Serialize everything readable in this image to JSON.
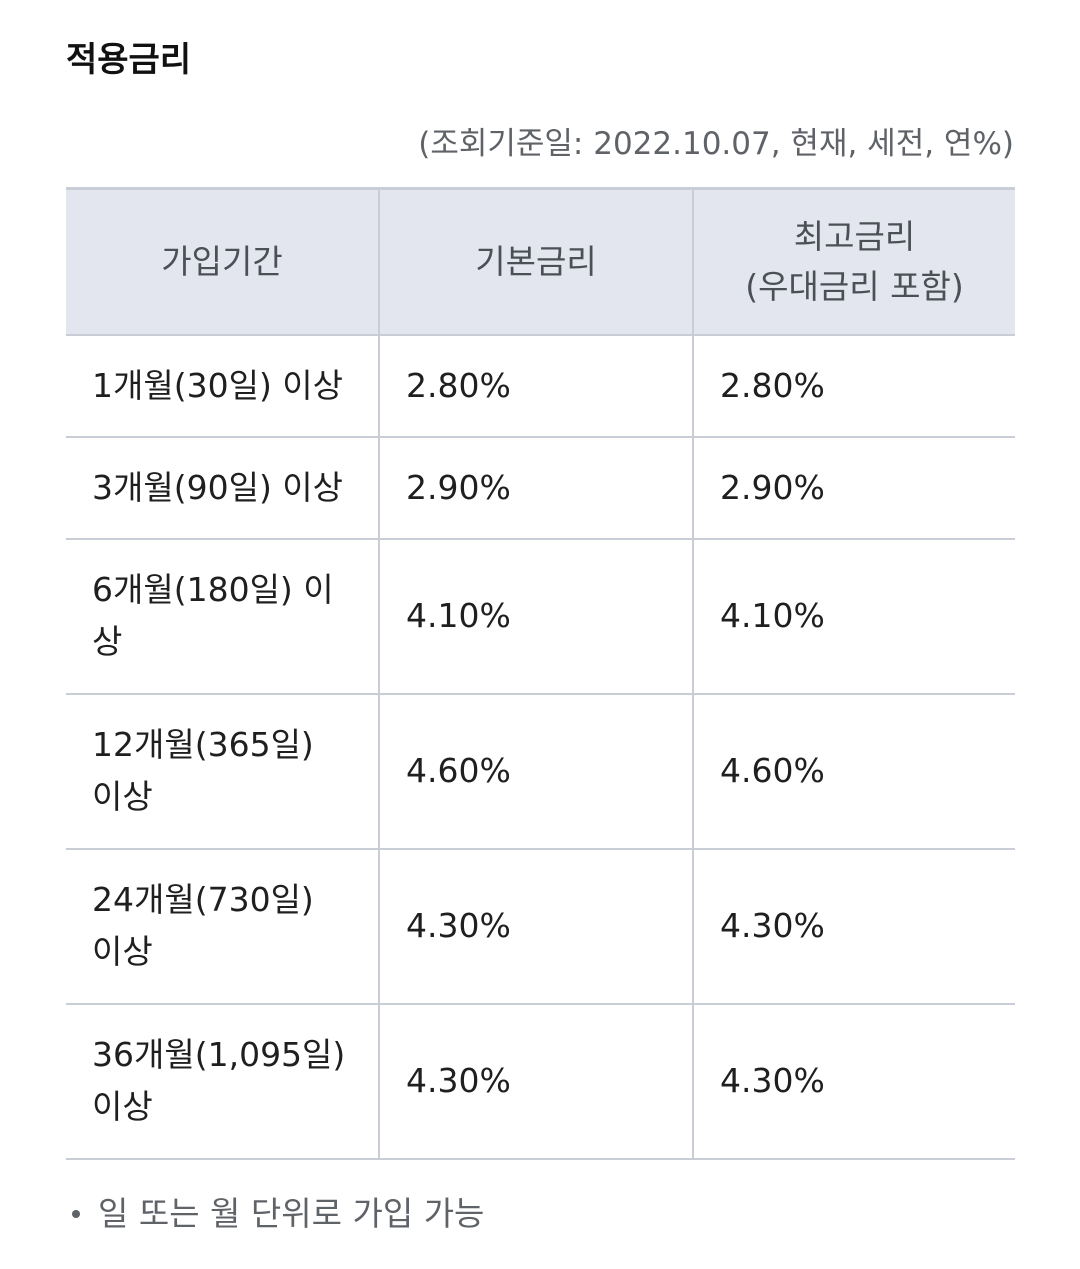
{
  "section": {
    "title": "적용금리",
    "reference_note": "(조회기준일: 2022.10.07, 현재, 세전, 연%)"
  },
  "table": {
    "headers": {
      "period": "가입기간",
      "base_rate": "기본금리",
      "max_rate_line1": "최고금리",
      "max_rate_line2": "(우대금리 포함)"
    },
    "rows": [
      {
        "period": "1개월(30일) 이상",
        "base_rate": "2.80%",
        "max_rate": "2.80%"
      },
      {
        "period": "3개월(90일) 이상",
        "base_rate": "2.90%",
        "max_rate": "2.90%"
      },
      {
        "period": "6개월(180일) 이상",
        "base_rate": "4.10%",
        "max_rate": "4.10%"
      },
      {
        "period": "12개월(365일) 이상",
        "base_rate": "4.60%",
        "max_rate": "4.60%"
      },
      {
        "period": "24개월(730일) 이상",
        "base_rate": "4.30%",
        "max_rate": "4.30%"
      },
      {
        "period": "36개월(1,095일) 이상",
        "base_rate": "4.30%",
        "max_rate": "4.30%"
      }
    ]
  },
  "footnote": {
    "text": "일 또는 월 단위로 가입 가능"
  },
  "colors": {
    "header_background": "#e3e6ef",
    "border": "#c9cdd6",
    "muted_text": "#5f6368"
  }
}
